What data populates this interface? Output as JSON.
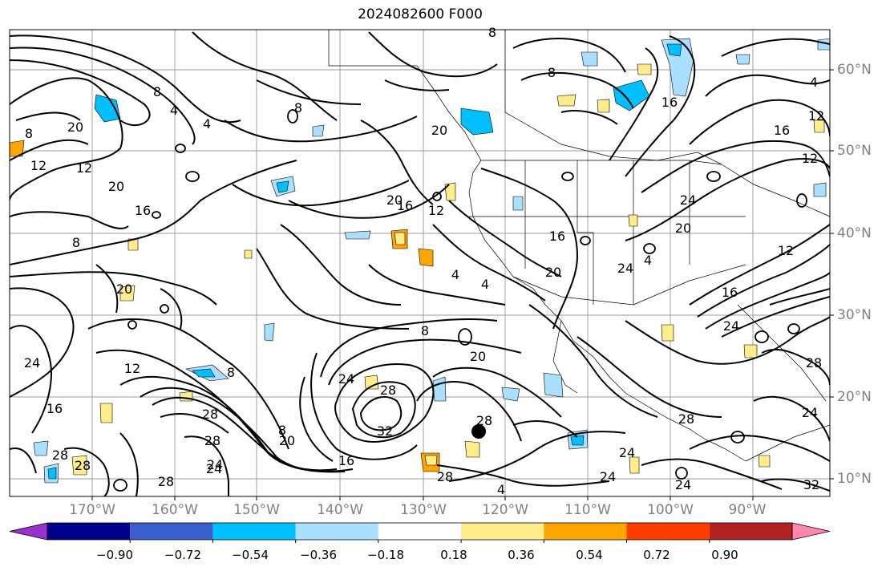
{
  "title": "2024082600 F000",
  "lon_labels": [
    "170°W",
    "160°W",
    "150°W",
    "140°W",
    "130°W",
    "120°W",
    "110°W",
    "100°W",
    "90°W"
  ],
  "lat_labels": [
    "60°N",
    "50°N",
    "40°N",
    "30°N",
    "20°N",
    "10°N"
  ],
  "contour_labels": [
    "8",
    "8",
    "8",
    "4",
    "4",
    "20",
    "20",
    "16",
    "12",
    "8",
    "4",
    "12",
    "12",
    "20",
    "16",
    "20",
    "24",
    "20",
    "24",
    "4",
    "12",
    "8",
    "20",
    "24",
    "28",
    "28",
    "28",
    "28",
    "24",
    "28",
    "28",
    "32",
    "16",
    "8",
    "8",
    "20",
    "16",
    "12",
    "24",
    "16",
    "24",
    "28",
    "24",
    "24",
    "32",
    "28",
    "16",
    "12",
    "16",
    "28",
    "4",
    "8",
    "12",
    "24",
    "4",
    "24",
    "24",
    "20",
    "20",
    "4",
    "28",
    "8",
    "16"
  ],
  "colorbar": {
    "colors": [
      "#9932cc",
      "#00008b",
      "#3a5fcd",
      "#00bfff",
      "#aadfff",
      "#ffffff",
      "#ffec8b",
      "#ffa500",
      "#ff3c00",
      "#b22222",
      "#ff88aa"
    ],
    "labels": [
      "−0.90",
      "−0.72",
      "−0.54",
      "−0.36",
      "−0.18",
      "0.18",
      "0.36",
      "0.54",
      "0.72",
      "0.90"
    ]
  }
}
